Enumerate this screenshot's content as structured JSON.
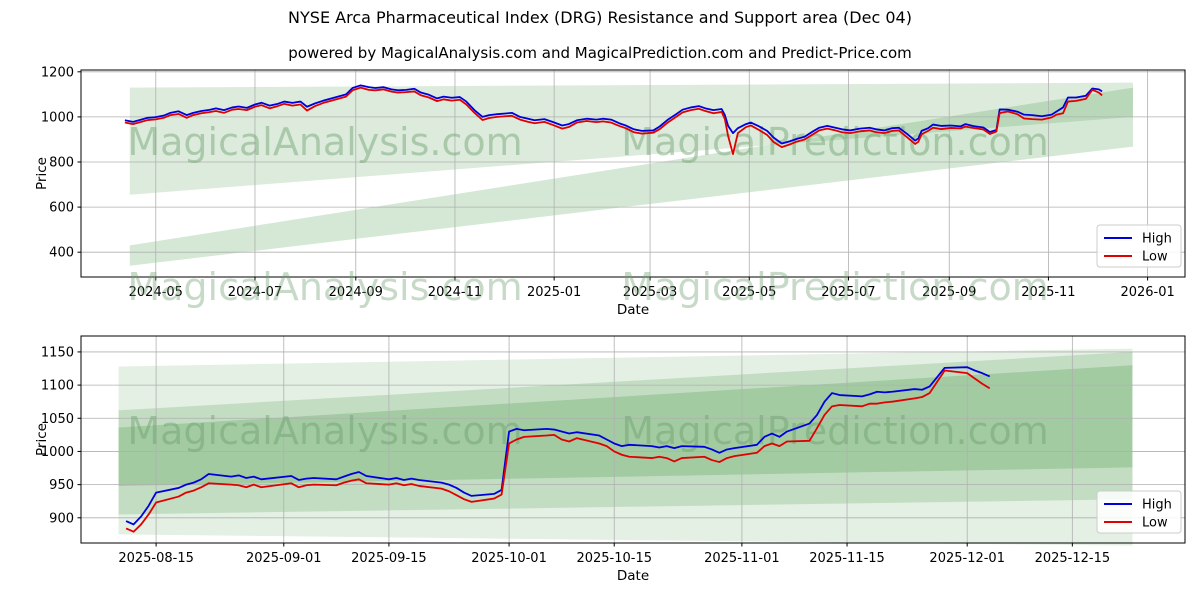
{
  "title": "NYSE Arca Pharmaceutical Index (DRG) Resistance and Support area (Dec 04)",
  "subtitle": "powered by MagicalAnalysis.com and MagicalPrediction.com and Predict-Price.com",
  "watermarks": {
    "left_text": "MagicalAnalysis.com",
    "right_text": "MagicalPrediction.com"
  },
  "colors": {
    "high_line": "#0000dd",
    "low_line": "#e00000",
    "band_green": "#2e8b2e",
    "grid": "#b0b0b0",
    "axis": "#000000",
    "watermark": "#6fa06f",
    "legend_border": "#cccccc"
  },
  "chart_data": [
    {
      "type": "line",
      "name": "full-history",
      "xlabel": "Date",
      "ylabel": "Price",
      "grid": true,
      "legend_position": "lower right",
      "legend": [
        "High",
        "Low"
      ],
      "xlim": [
        "2024-03-16",
        "2026-01-24"
      ],
      "ylim": [
        290,
        1208
      ],
      "yticks": [
        1200,
        1000,
        800,
        600,
        400
      ],
      "xticks": [
        {
          "date": "2024-05-01",
          "label": "2024-05"
        },
        {
          "date": "2024-07-01",
          "label": "2024-07"
        },
        {
          "date": "2024-09-01",
          "label": "2024-09"
        },
        {
          "date": "2024-11-01",
          "label": "2024-11"
        },
        {
          "date": "2025-01-01",
          "label": "2025-01"
        },
        {
          "date": "2025-03-01",
          "label": "2025-03"
        },
        {
          "date": "2025-05-01",
          "label": "2025-05"
        },
        {
          "date": "2025-07-01",
          "label": "2025-07"
        },
        {
          "date": "2025-09-01",
          "label": "2025-09"
        },
        {
          "date": "2025-11-01",
          "label": "2025-11"
        },
        {
          "date": "2026-01-01",
          "label": "2026-01"
        }
      ],
      "bands": [
        {
          "x": [
            "2024-04-15",
            "2025-12-23"
          ],
          "top": [
            1130,
            1152
          ],
          "bottom": [
            655,
            1000
          ],
          "alpha": 0.17
        },
        {
          "x": [
            "2024-04-15",
            "2025-12-23"
          ],
          "top": [
            430,
            1130
          ],
          "bottom": [
            340,
            868
          ],
          "alpha": 0.2
        }
      ],
      "series": {
        "dates": [
          "2024-04-12",
          "2024-04-17",
          "2024-04-22",
          "2024-04-26",
          "2024-05-01",
          "2024-05-06",
          "2024-05-10",
          "2024-05-15",
          "2024-05-20",
          "2024-05-24",
          "2024-05-29",
          "2024-06-03",
          "2024-06-07",
          "2024-06-12",
          "2024-06-17",
          "2024-06-21",
          "2024-06-26",
          "2024-07-01",
          "2024-07-05",
          "2024-07-10",
          "2024-07-15",
          "2024-07-19",
          "2024-07-24",
          "2024-07-29",
          "2024-08-02",
          "2024-08-07",
          "2024-08-12",
          "2024-08-16",
          "2024-08-21",
          "2024-08-26",
          "2024-08-30",
          "2024-09-04",
          "2024-09-09",
          "2024-09-13",
          "2024-09-18",
          "2024-09-23",
          "2024-09-27",
          "2024-10-02",
          "2024-10-07",
          "2024-10-11",
          "2024-10-16",
          "2024-10-21",
          "2024-10-25",
          "2024-10-30",
          "2024-11-04",
          "2024-11-08",
          "2024-11-13",
          "2024-11-18",
          "2024-11-22",
          "2024-11-27",
          "2024-12-02",
          "2024-12-06",
          "2024-12-11",
          "2024-12-16",
          "2024-12-20",
          "2024-12-26",
          "2024-12-31",
          "2025-01-06",
          "2025-01-10",
          "2025-01-15",
          "2025-01-21",
          "2025-01-27",
          "2025-01-31",
          "2025-02-05",
          "2025-02-10",
          "2025-02-14",
          "2025-02-19",
          "2025-02-24",
          "2025-03-03",
          "2025-03-07",
          "2025-03-12",
          "2025-03-17",
          "2025-03-21",
          "2025-03-26",
          "2025-03-31",
          "2025-04-04",
          "2025-04-09",
          "2025-04-14",
          "2025-04-16",
          "2025-04-18",
          "2025-04-21",
          "2025-04-24",
          "2025-04-29",
          "2025-05-02",
          "2025-05-07",
          "2025-05-12",
          "2025-05-16",
          "2025-05-21",
          "2025-05-26",
          "2025-05-30",
          "2025-06-04",
          "2025-06-09",
          "2025-06-13",
          "2025-06-18",
          "2025-06-23",
          "2025-06-27",
          "2025-07-02",
          "2025-07-08",
          "2025-07-14",
          "2025-07-18",
          "2025-07-23",
          "2025-07-28",
          "2025-08-01",
          "2025-08-06",
          "2025-08-11",
          "2025-08-13",
          "2025-08-15",
          "2025-08-19",
          "2025-08-22",
          "2025-08-27",
          "2025-09-02",
          "2025-09-08",
          "2025-09-11",
          "2025-09-16",
          "2025-09-22",
          "2025-09-26",
          "2025-09-30",
          "2025-10-02",
          "2025-10-07",
          "2025-10-13",
          "2025-10-17",
          "2025-10-22",
          "2025-10-28",
          "2025-11-03",
          "2025-11-06",
          "2025-11-10",
          "2025-11-13",
          "2025-11-18",
          "2025-11-24",
          "2025-11-28",
          "2025-12-02",
          "2025-12-04"
        ],
        "high": [
          985,
          978,
          988,
          996,
          999,
          1006,
          1018,
          1025,
          1008,
          1018,
          1026,
          1031,
          1038,
          1030,
          1042,
          1046,
          1040,
          1055,
          1063,
          1050,
          1058,
          1068,
          1062,
          1068,
          1045,
          1060,
          1072,
          1080,
          1090,
          1100,
          1128,
          1140,
          1132,
          1128,
          1132,
          1122,
          1118,
          1120,
          1125,
          1108,
          1098,
          1082,
          1090,
          1085,
          1088,
          1068,
          1030,
          1000,
          1008,
          1012,
          1015,
          1018,
          1000,
          992,
          985,
          990,
          978,
          962,
          968,
          985,
          992,
          988,
          992,
          988,
          972,
          962,
          945,
          938,
          940,
          958,
          988,
          1012,
          1032,
          1042,
          1048,
          1038,
          1030,
          1035,
          1008,
          960,
          928,
          950,
          968,
          975,
          958,
          938,
          908,
          882,
          892,
          902,
          912,
          935,
          952,
          960,
          952,
          945,
          940,
          948,
          952,
          945,
          940,
          950,
          952,
          925,
          895,
          905,
          938,
          950,
          966,
          960,
          962,
          958,
          968,
          959,
          953,
          933,
          942,
          1033,
          1032,
          1023,
          1010,
          1008,
          1003,
          1010,
          1024,
          1042,
          1086,
          1086,
          1094,
          1126,
          1122,
          1113
        ],
        "low": [
          975,
          968,
          978,
          986,
          989,
          996,
          1008,
          1013,
          996,
          1008,
          1016,
          1021,
          1026,
          1018,
          1032,
          1035,
          1030,
          1045,
          1052,
          1038,
          1048,
          1058,
          1050,
          1055,
          1028,
          1048,
          1062,
          1070,
          1080,
          1090,
          1118,
          1130,
          1120,
          1118,
          1122,
          1112,
          1108,
          1110,
          1113,
          1096,
          1086,
          1070,
          1078,
          1072,
          1076,
          1055,
          1018,
          986,
          995,
          1000,
          1003,
          1005,
          988,
          978,
          972,
          978,
          965,
          948,
          955,
          975,
          982,
          977,
          980,
          975,
          960,
          950,
          932,
          926,
          930,
          946,
          976,
          1000,
          1020,
          1030,
          1036,
          1026,
          1016,
          1022,
          990,
          915,
          835,
          928,
          955,
          962,
          942,
          920,
          888,
          866,
          878,
          890,
          900,
          922,
          940,
          948,
          940,
          932,
          928,
          936,
          940,
          932,
          928,
          938,
          940,
          910,
          880,
          890,
          923,
          938,
          952,
          946,
          951,
          949,
          957,
          951,
          944,
          924,
          935,
          1017,
          1024,
          1012,
          993,
          990,
          988,
          998,
          1010,
          1016,
          1068,
          1071,
          1080,
          1120,
          1108,
          1095
        ]
      }
    },
    {
      "type": "line",
      "name": "recent-detail",
      "xlabel": "Date",
      "ylabel": "Price",
      "grid": true,
      "legend_position": "lower right",
      "legend": [
        "High",
        "Low"
      ],
      "xlim": [
        "2025-08-05",
        "2025-12-30"
      ],
      "ylim": [
        862,
        1174
      ],
      "yticks": [
        1150,
        1100,
        1050,
        1000,
        950,
        900
      ],
      "xticks": [
        {
          "date": "2025-08-15",
          "label": "2025-08-15"
        },
        {
          "date": "2025-09-01",
          "label": "2025-09-01"
        },
        {
          "date": "2025-09-15",
          "label": "2025-09-15"
        },
        {
          "date": "2025-10-01",
          "label": "2025-10-01"
        },
        {
          "date": "2025-10-15",
          "label": "2025-10-15"
        },
        {
          "date": "2025-11-01",
          "label": "2025-11-01"
        },
        {
          "date": "2025-11-15",
          "label": "2025-11-15"
        },
        {
          "date": "2025-12-01",
          "label": "2025-12-01"
        },
        {
          "date": "2025-12-15",
          "label": "2025-12-15"
        }
      ],
      "bands": [
        {
          "x": [
            "2025-08-10",
            "2025-12-23"
          ],
          "top": [
            1128,
            1155
          ],
          "bottom": [
            875,
            858
          ],
          "alpha": 0.13
        },
        {
          "x": [
            "2025-08-10",
            "2025-12-23"
          ],
          "top": [
            1062,
            1150
          ],
          "bottom": [
            905,
            928
          ],
          "alpha": 0.18
        },
        {
          "x": [
            "2025-08-10",
            "2025-12-23"
          ],
          "top": [
            1036,
            1130
          ],
          "bottom": [
            948,
            976
          ],
          "alpha": 0.22
        }
      ],
      "series": {
        "dates": [
          "2025-08-11",
          "2025-08-12",
          "2025-08-13",
          "2025-08-14",
          "2025-08-15",
          "2025-08-18",
          "2025-08-19",
          "2025-08-20",
          "2025-08-21",
          "2025-08-22",
          "2025-08-25",
          "2025-08-26",
          "2025-08-27",
          "2025-08-28",
          "2025-08-29",
          "2025-09-02",
          "2025-09-03",
          "2025-09-04",
          "2025-09-05",
          "2025-09-08",
          "2025-09-09",
          "2025-09-10",
          "2025-09-11",
          "2025-09-12",
          "2025-09-15",
          "2025-09-16",
          "2025-09-17",
          "2025-09-18",
          "2025-09-19",
          "2025-09-22",
          "2025-09-23",
          "2025-09-24",
          "2025-09-25",
          "2025-09-26",
          "2025-09-29",
          "2025-09-30",
          "2025-10-01",
          "2025-10-02",
          "2025-10-03",
          "2025-10-06",
          "2025-10-07",
          "2025-10-08",
          "2025-10-09",
          "2025-10-10",
          "2025-10-13",
          "2025-10-14",
          "2025-10-15",
          "2025-10-16",
          "2025-10-17",
          "2025-10-20",
          "2025-10-21",
          "2025-10-22",
          "2025-10-23",
          "2025-10-24",
          "2025-10-27",
          "2025-10-28",
          "2025-10-29",
          "2025-10-30",
          "2025-10-31",
          "2025-11-03",
          "2025-11-04",
          "2025-11-05",
          "2025-11-06",
          "2025-11-07",
          "2025-11-10",
          "2025-11-11",
          "2025-11-12",
          "2025-11-13",
          "2025-11-14",
          "2025-11-17",
          "2025-11-18",
          "2025-11-19",
          "2025-11-20",
          "2025-11-21",
          "2025-11-24",
          "2025-11-25",
          "2025-11-26",
          "2025-11-28",
          "2025-12-01",
          "2025-12-02",
          "2025-12-03",
          "2025-12-04"
        ],
        "high": [
          895,
          890,
          902,
          918,
          938,
          945,
          950,
          953,
          958,
          966,
          962,
          964,
          960,
          962,
          958,
          963,
          957,
          959,
          960,
          958,
          962,
          966,
          969,
          963,
          958,
          960,
          957,
          959,
          957,
          953,
          950,
          945,
          938,
          933,
          936,
          942,
          1030,
          1034,
          1032,
          1034,
          1033,
          1030,
          1027,
          1029,
          1024,
          1018,
          1012,
          1008,
          1010,
          1008,
          1006,
          1008,
          1005,
          1008,
          1007,
          1003,
          998,
          1003,
          1005,
          1010,
          1022,
          1027,
          1022,
          1030,
          1042,
          1055,
          1075,
          1088,
          1085,
          1083,
          1086,
          1090,
          1089,
          1090,
          1094,
          1093,
          1098,
          1126,
          1127,
          1122,
          1118,
          1113
        ],
        "low": [
          884,
          879,
          890,
          905,
          923,
          932,
          938,
          941,
          946,
          952,
          950,
          949,
          946,
          950,
          946,
          952,
          946,
          949,
          950,
          949,
          953,
          956,
          958,
          952,
          950,
          952,
          949,
          951,
          948,
          944,
          940,
          934,
          928,
          924,
          929,
          935,
          1012,
          1018,
          1022,
          1024,
          1025,
          1018,
          1015,
          1020,
          1012,
          1008,
          1000,
          995,
          992,
          990,
          992,
          990,
          985,
          990,
          992,
          987,
          984,
          990,
          993,
          998,
          1008,
          1012,
          1008,
          1015,
          1016,
          1035,
          1055,
          1068,
          1070,
          1068,
          1072,
          1072,
          1074,
          1075,
          1080,
          1082,
          1088,
          1122,
          1118,
          1110,
          1102,
          1095
        ]
      }
    }
  ]
}
